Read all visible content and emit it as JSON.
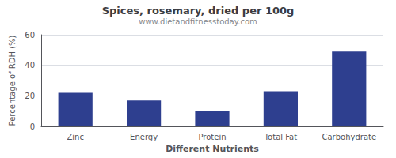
{
  "chart_data": {
    "type": "bar",
    "title": "Spices, rosemary, dried per 100g",
    "subtitle": "www.dietandfitnesstoday.com",
    "xlabel": "Different Nutrients",
    "ylabel": "Percentage of RDH (%)",
    "categories": [
      "Zinc",
      "Energy",
      "Protein",
      "Total Fat",
      "Carbohydrate"
    ],
    "values": [
      22,
      17,
      10,
      23,
      49
    ],
    "color": "#2e3f8f",
    "ylim": [
      0,
      60
    ],
    "yticks": [
      0,
      20,
      40,
      60
    ],
    "grid": true
  }
}
